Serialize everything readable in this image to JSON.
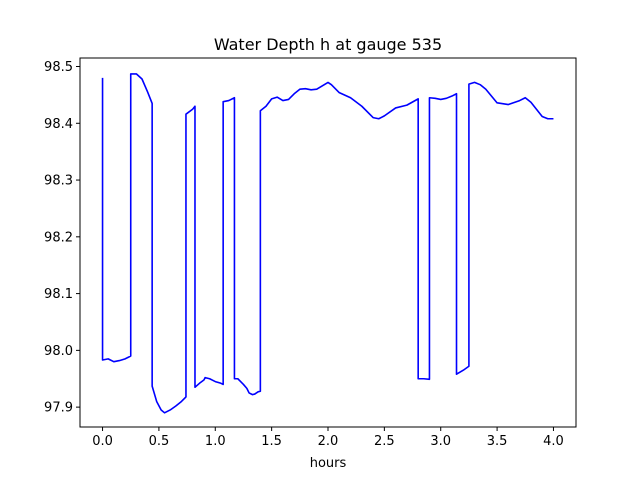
{
  "chart_data": {
    "type": "line",
    "title": "Water Depth h at gauge 535",
    "xlabel": "hours",
    "ylabel": "",
    "xlim": [
      -0.2,
      4.2
    ],
    "ylim": [
      97.865,
      98.515
    ],
    "xticks": [
      0.0,
      0.5,
      1.0,
      1.5,
      2.0,
      2.5,
      3.0,
      3.5,
      4.0
    ],
    "xtick_labels": [
      "0.0",
      "0.5",
      "1.0",
      "1.5",
      "2.0",
      "2.5",
      "3.0",
      "3.5",
      "4.0"
    ],
    "yticks": [
      97.9,
      98.0,
      98.1,
      98.2,
      98.3,
      98.4,
      98.5
    ],
    "ytick_labels": [
      "97.9",
      "98.0",
      "98.1",
      "98.2",
      "98.3",
      "98.4",
      "98.5"
    ],
    "grid": false,
    "line_color": "#0000ff",
    "series": [
      {
        "x": [
          0.0,
          0.0,
          0.05,
          0.1,
          0.15,
          0.2,
          0.25,
          0.25,
          0.3,
          0.35,
          0.4,
          0.44,
          0.44,
          0.48,
          0.52,
          0.55,
          0.6,
          0.65,
          0.7,
          0.74,
          0.74,
          0.8,
          0.82,
          0.82,
          0.86,
          0.9,
          0.91,
          0.95,
          0.98,
          1.0,
          1.05,
          1.07,
          1.07,
          1.12,
          1.17,
          1.17,
          1.2,
          1.25,
          1.28,
          1.3,
          1.33,
          1.35,
          1.38,
          1.4,
          1.4,
          1.45,
          1.5,
          1.55,
          1.6,
          1.65,
          1.7,
          1.75,
          1.8,
          1.85,
          1.9,
          1.95,
          2.0,
          2.03,
          2.1,
          2.2,
          2.3,
          2.4,
          2.45,
          2.5,
          2.6,
          2.7,
          2.8,
          2.8,
          2.85,
          2.9,
          2.9,
          2.95,
          3.0,
          3.05,
          3.1,
          3.14,
          3.14,
          3.2,
          3.25,
          3.25,
          3.3,
          3.35,
          3.4,
          3.5,
          3.6,
          3.7,
          3.75,
          3.8,
          3.9,
          3.95,
          4.0
        ],
        "y": [
          98.48,
          97.983,
          97.985,
          97.98,
          97.982,
          97.985,
          97.99,
          98.487,
          98.487,
          98.478,
          98.455,
          98.435,
          97.937,
          97.91,
          97.895,
          97.89,
          97.895,
          97.902,
          97.91,
          97.918,
          98.416,
          98.425,
          98.43,
          97.935,
          97.942,
          97.948,
          97.952,
          97.95,
          97.947,
          97.945,
          97.942,
          97.94,
          98.438,
          98.44,
          98.445,
          97.95,
          97.95,
          97.94,
          97.933,
          97.925,
          97.922,
          97.923,
          97.927,
          97.928,
          98.422,
          98.43,
          98.443,
          98.446,
          98.44,
          98.442,
          98.452,
          98.46,
          98.461,
          98.459,
          98.46,
          98.466,
          98.472,
          98.468,
          98.454,
          98.445,
          98.43,
          98.41,
          98.408,
          98.413,
          98.427,
          98.432,
          98.443,
          97.95,
          97.95,
          97.949,
          98.445,
          98.444,
          98.442,
          98.444,
          98.448,
          98.452,
          97.958,
          97.965,
          97.972,
          98.469,
          98.472,
          98.468,
          98.46,
          98.436,
          98.433,
          98.44,
          98.445,
          98.437,
          98.412,
          98.408,
          98.408
        ]
      }
    ]
  }
}
